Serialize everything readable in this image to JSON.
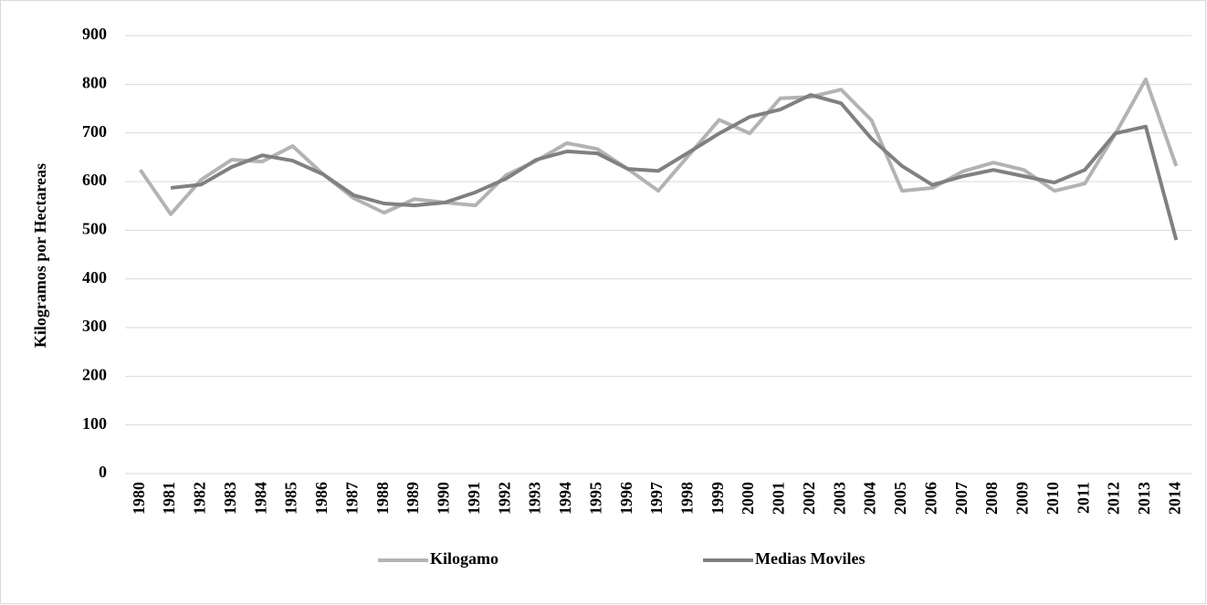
{
  "chart_data": {
    "type": "line",
    "y_label": "Kilogramos por Hectareas",
    "categories": [
      "1980",
      "1981",
      "1982",
      "1983",
      "1984",
      "1985",
      "1986",
      "1987",
      "1988",
      "1989",
      "1990",
      "1991",
      "1992",
      "1993",
      "1994",
      "1995",
      "1996",
      "1997",
      "1998",
      "1999",
      "2000",
      "2001",
      "2002",
      "2003",
      "2004",
      "2005",
      "2006",
      "2007",
      "2008",
      "2009",
      "2010",
      "2011",
      "2012",
      "2013",
      "2014"
    ],
    "series": [
      {
        "name": "Kilogamo",
        "color": "#b3b3b3",
        "values": [
          624,
          533,
          604,
          645,
          641,
          673,
          615,
          566,
          536,
          564,
          557,
          551,
          613,
          643,
          679,
          667,
          626,
          581,
          654,
          727,
          699,
          771,
          774,
          789,
          726,
          581,
          587,
          621,
          639,
          624,
          581,
          596,
          698,
          810,
          632
        ]
      },
      {
        "name": "Medias Moviles",
        "color": "#808080",
        "values": [
          null,
          587,
          594,
          630,
          654,
          643,
          615,
          572,
          555,
          551,
          557,
          578,
          606,
          645,
          662,
          658,
          626,
          622,
          660,
          699,
          733,
          748,
          778,
          761,
          688,
          632,
          593,
          611,
          624,
          611,
          598,
          624,
          699,
          713,
          480
        ]
      }
    ],
    "ylim": [
      0,
      900
    ],
    "yticks": [
      0,
      100,
      200,
      300,
      400,
      500,
      600,
      700,
      800,
      900
    ],
    "grid": true,
    "legend": "bottom"
  }
}
